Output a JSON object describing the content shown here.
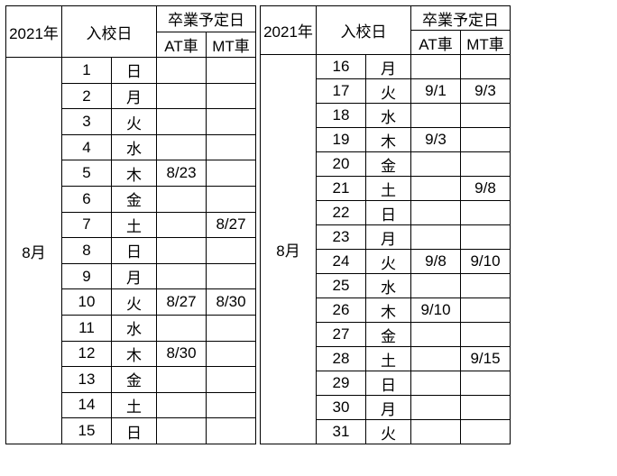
{
  "year_label": "2021年",
  "entry_label": "入校日",
  "grad_label": "卒業予定日",
  "at_label": "AT車",
  "mt_label": "MT車",
  "month_label": "8月",
  "left_rows": [
    {
      "d": "1",
      "w": "日",
      "at": "",
      "mt": ""
    },
    {
      "d": "2",
      "w": "月",
      "at": "",
      "mt": ""
    },
    {
      "d": "3",
      "w": "火",
      "at": "",
      "mt": ""
    },
    {
      "d": "4",
      "w": "水",
      "at": "",
      "mt": ""
    },
    {
      "d": "5",
      "w": "木",
      "at": "8/23",
      "mt": ""
    },
    {
      "d": "6",
      "w": "金",
      "at": "",
      "mt": ""
    },
    {
      "d": "7",
      "w": "土",
      "at": "",
      "mt": "8/27"
    },
    {
      "d": "8",
      "w": "日",
      "at": "",
      "mt": ""
    },
    {
      "d": "9",
      "w": "月",
      "at": "",
      "mt": ""
    },
    {
      "d": "10",
      "w": "火",
      "at": "8/27",
      "mt": "8/30"
    },
    {
      "d": "11",
      "w": "水",
      "at": "",
      "mt": ""
    },
    {
      "d": "12",
      "w": "木",
      "at": "8/30",
      "mt": ""
    },
    {
      "d": "13",
      "w": "金",
      "at": "",
      "mt": ""
    },
    {
      "d": "14",
      "w": "土",
      "at": "",
      "mt": ""
    },
    {
      "d": "15",
      "w": "日",
      "at": "",
      "mt": ""
    }
  ],
  "right_rows": [
    {
      "d": "16",
      "w": "月",
      "at": "",
      "mt": ""
    },
    {
      "d": "17",
      "w": "火",
      "at": "9/1",
      "mt": "9/3"
    },
    {
      "d": "18",
      "w": "水",
      "at": "",
      "mt": ""
    },
    {
      "d": "19",
      "w": "木",
      "at": "9/3",
      "mt": ""
    },
    {
      "d": "20",
      "w": "金",
      "at": "",
      "mt": ""
    },
    {
      "d": "21",
      "w": "土",
      "at": "",
      "mt": "9/8"
    },
    {
      "d": "22",
      "w": "日",
      "at": "",
      "mt": ""
    },
    {
      "d": "23",
      "w": "月",
      "at": "",
      "mt": ""
    },
    {
      "d": "24",
      "w": "火",
      "at": "9/8",
      "mt": "9/10"
    },
    {
      "d": "25",
      "w": "水",
      "at": "",
      "mt": ""
    },
    {
      "d": "26",
      "w": "木",
      "at": "9/10",
      "mt": ""
    },
    {
      "d": "27",
      "w": "金",
      "at": "",
      "mt": ""
    },
    {
      "d": "28",
      "w": "土",
      "at": "",
      "mt": "9/15"
    },
    {
      "d": "29",
      "w": "日",
      "at": "",
      "mt": ""
    },
    {
      "d": "30",
      "w": "月",
      "at": "",
      "mt": ""
    },
    {
      "d": "31",
      "w": "火",
      "at": "",
      "mt": ""
    }
  ]
}
